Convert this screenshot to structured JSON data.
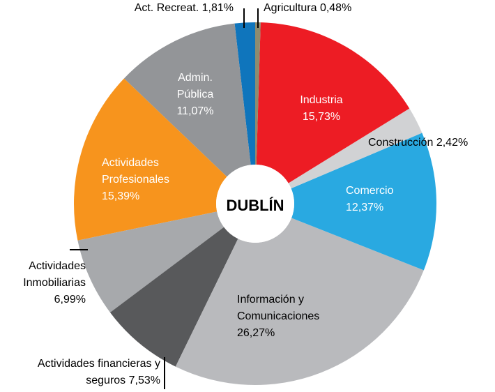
{
  "chart_data": {
    "type": "donut",
    "title": "DUBLÍN",
    "categories": [
      "Agricultura",
      "Industria",
      "Construcción",
      "Comercio",
      "Información y Comunicaciones",
      "Actividades financieras y seguros",
      "Actividades Inmobiliarias",
      "Actividades Profesionales",
      "Admin. Pública",
      "Act. Recreat."
    ],
    "values": [
      0.48,
      15.73,
      2.42,
      12.37,
      26.27,
      7.53,
      6.99,
      15.39,
      11.07,
      1.81
    ],
    "value_labels": [
      "0,48%",
      "15,73%",
      "2,42%",
      "12,37%",
      "26,27%",
      "7,53%",
      "6,99%",
      "15,39%",
      "11,07%",
      "1,81%"
    ],
    "colors": [
      "#8c8c70",
      "#ed1c24",
      "#d1d2d4",
      "#29a9e1",
      "#b9babd",
      "#58595b",
      "#a7a9ac",
      "#f7941d",
      "#939598",
      "#0f75bc"
    ]
  }
}
